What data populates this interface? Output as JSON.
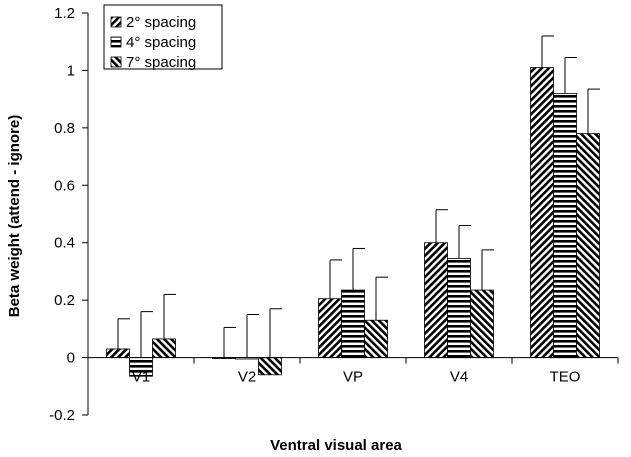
{
  "chart_data": {
    "type": "bar",
    "title": "",
    "xlabel": "Ventral visual area",
    "ylabel": "Beta weight (attend - ignore)",
    "ylim": [
      -0.2,
      1.2
    ],
    "yticks": [
      "1.2",
      "1",
      "0.8",
      "0.6",
      "0.4",
      "0.2",
      "0",
      "-0.2"
    ],
    "ytick_values": [
      1.2,
      1.0,
      0.8,
      0.6,
      0.4,
      0.2,
      0,
      -0.2
    ],
    "categories": [
      "V1",
      "V2",
      "VP",
      "V4",
      "TEO"
    ],
    "legend_position": "top-left",
    "grid": false,
    "series": [
      {
        "name": "2° spacing",
        "pattern": "diagonal-right",
        "values": [
          0.03,
          0.0,
          0.205,
          0.4,
          1.01
        ],
        "errors": [
          0.105,
          0.105,
          0.135,
          0.115,
          0.11
        ]
      },
      {
        "name": "4° spacing",
        "pattern": "horizontal",
        "values": [
          -0.065,
          -0.005,
          0.235,
          0.345,
          0.92
        ],
        "errors": [
          0.16,
          0.15,
          0.145,
          0.115,
          0.125
        ]
      },
      {
        "name": "7° spacing",
        "pattern": "diagonal-left",
        "values": [
          0.065,
          -0.06,
          0.13,
          0.235,
          0.78
        ],
        "errors": [
          0.155,
          0.17,
          0.15,
          0.14,
          0.155
        ]
      }
    ]
  }
}
